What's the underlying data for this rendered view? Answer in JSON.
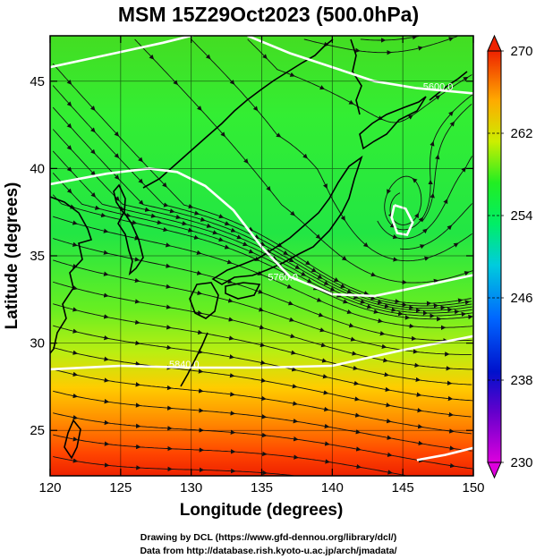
{
  "title": "MSM 15Z29Oct2023 (500.0hPa)",
  "xlabel": "Longitude (degrees)",
  "ylabel": "Latitude  (degrees)",
  "credits": [
    "Drawing by DCL (https://www.gfd-dennou.org/library/dcl/)",
    "Data from http://database.rish.kyoto-u.ac.jp/arch/jmadata/"
  ],
  "map_data": {
    "type": "wind streamline / temperature map",
    "lon_range": [
      120,
      150
    ],
    "lat_range": [
      22.4,
      47.6
    ],
    "lon_ticks": [
      120,
      125,
      130,
      135,
      140,
      145,
      150
    ],
    "lat_ticks": [
      25,
      30,
      35,
      40,
      45
    ],
    "colorbar": {
      "min": 230,
      "max": 270,
      "ticks": [
        230,
        238,
        246,
        254,
        262,
        270
      ],
      "colors": [
        "#cc00cc",
        "#2200dd",
        "#0099ff",
        "#00ee88",
        "#33dd00",
        "#eeee00",
        "#ff8800",
        "#ee2200"
      ]
    },
    "contours": [
      {
        "label": "5600.0",
        "label_lon": 147.5,
        "label_lat": 44.5
      },
      {
        "label": "5760.0",
        "label_lon": 136.5,
        "label_lat": 33.6
      },
      {
        "label": "5840.0",
        "label_lon": 129.5,
        "label_lat": 28.6
      }
    ],
    "contour_lines": [
      [
        [
          120,
          45.8
        ],
        [
          124,
          46.5
        ],
        [
          128,
          47.2
        ],
        [
          131,
          47.8
        ]
      ],
      [
        [
          134,
          47.6
        ],
        [
          137,
          46.6
        ],
        [
          140,
          45.8
        ],
        [
          143,
          45.0
        ],
        [
          146,
          44.6
        ],
        [
          150,
          44.3
        ]
      ],
      [
        [
          120,
          39.1
        ],
        [
          124,
          39.7
        ],
        [
          127,
          40.0
        ],
        [
          129,
          39.8
        ],
        [
          131,
          39.0
        ],
        [
          133,
          37.6
        ],
        [
          135,
          35.5
        ],
        [
          137,
          33.8
        ],
        [
          140,
          32.8
        ],
        [
          143,
          32.7
        ],
        [
          146,
          33.2
        ],
        [
          150,
          33.9
        ]
      ],
      [
        [
          120,
          28.5
        ],
        [
          125,
          28.7
        ],
        [
          130,
          28.6
        ],
        [
          135,
          28.6
        ],
        [
          140,
          28.7
        ],
        [
          145,
          29.6
        ],
        [
          150,
          30.4
        ]
      ],
      [
        [
          144.4,
          37.9
        ],
        [
          145.2,
          37.7
        ],
        [
          145.7,
          36.9
        ],
        [
          145.3,
          36.2
        ],
        [
          144.6,
          36.3
        ],
        [
          144.2,
          37.2
        ],
        [
          144.4,
          37.9
        ]
      ],
      [
        [
          146,
          23.3
        ],
        [
          148,
          23.6
        ],
        [
          150,
          24.0
        ]
      ]
    ],
    "low_center": {
      "lon": 144.8,
      "lat": 37.0
    }
  }
}
